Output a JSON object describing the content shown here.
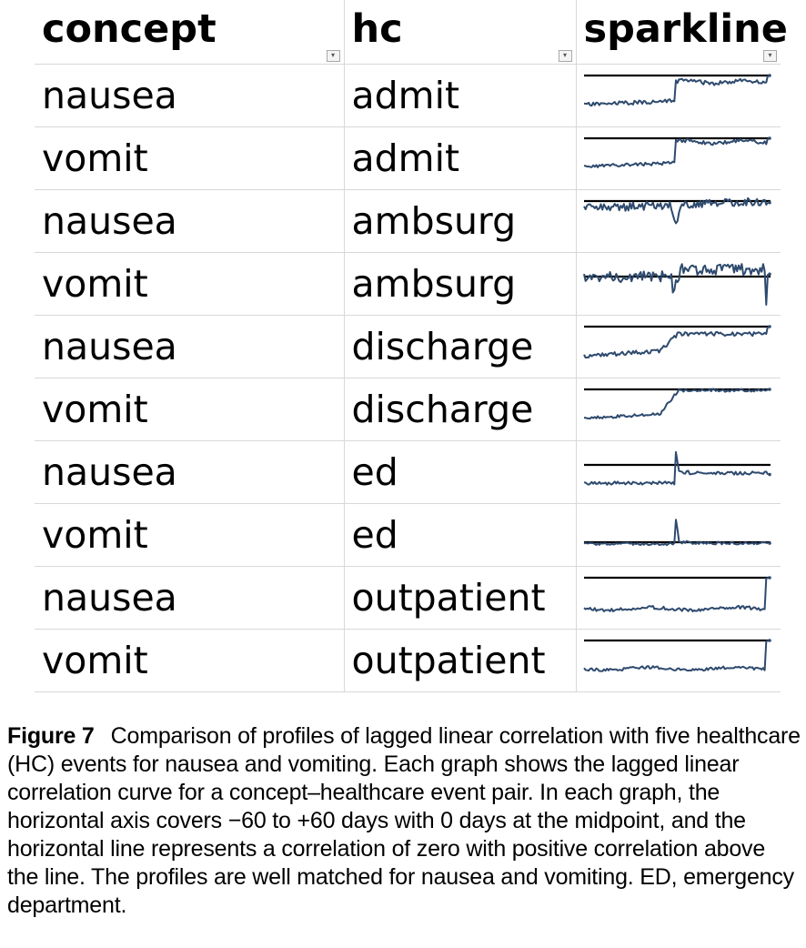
{
  "table": {
    "headers": [
      "concept",
      "hc",
      "sparkline"
    ],
    "rows": [
      {
        "concept": "nausea",
        "hc": "admit"
      },
      {
        "concept": "vomit",
        "hc": "admit"
      },
      {
        "concept": "nausea",
        "hc": "ambsurg"
      },
      {
        "concept": "vomit",
        "hc": "ambsurg"
      },
      {
        "concept": "nausea",
        "hc": "discharge"
      },
      {
        "concept": "vomit",
        "hc": "discharge"
      },
      {
        "concept": "nausea",
        "hc": "ed"
      },
      {
        "concept": "vomit",
        "hc": "ed"
      },
      {
        "concept": "nausea",
        "hc": "outpatient"
      },
      {
        "concept": "vomit",
        "hc": "outpatient"
      }
    ]
  },
  "sparklines": {
    "line_color": "#2e4a6e",
    "zero_line_color": "#000000",
    "x_range": [
      -60,
      60
    ],
    "zero_line": 0
  },
  "caption": {
    "label": "Figure 7",
    "text": "Comparison of profiles of lagged linear correlation with five healthcare (HC) events for nausea and vomiting. Each graph shows the lagged linear correlation curve for a concept–healthcare event pair. In each graph, the horizontal axis covers −60 to +60 days with 0 days at the midpoint, and the horizontal line represents a correlation of zero with positive correlation above the line. The profiles are well matched for nausea and vomiting. ED, emergency department."
  }
}
